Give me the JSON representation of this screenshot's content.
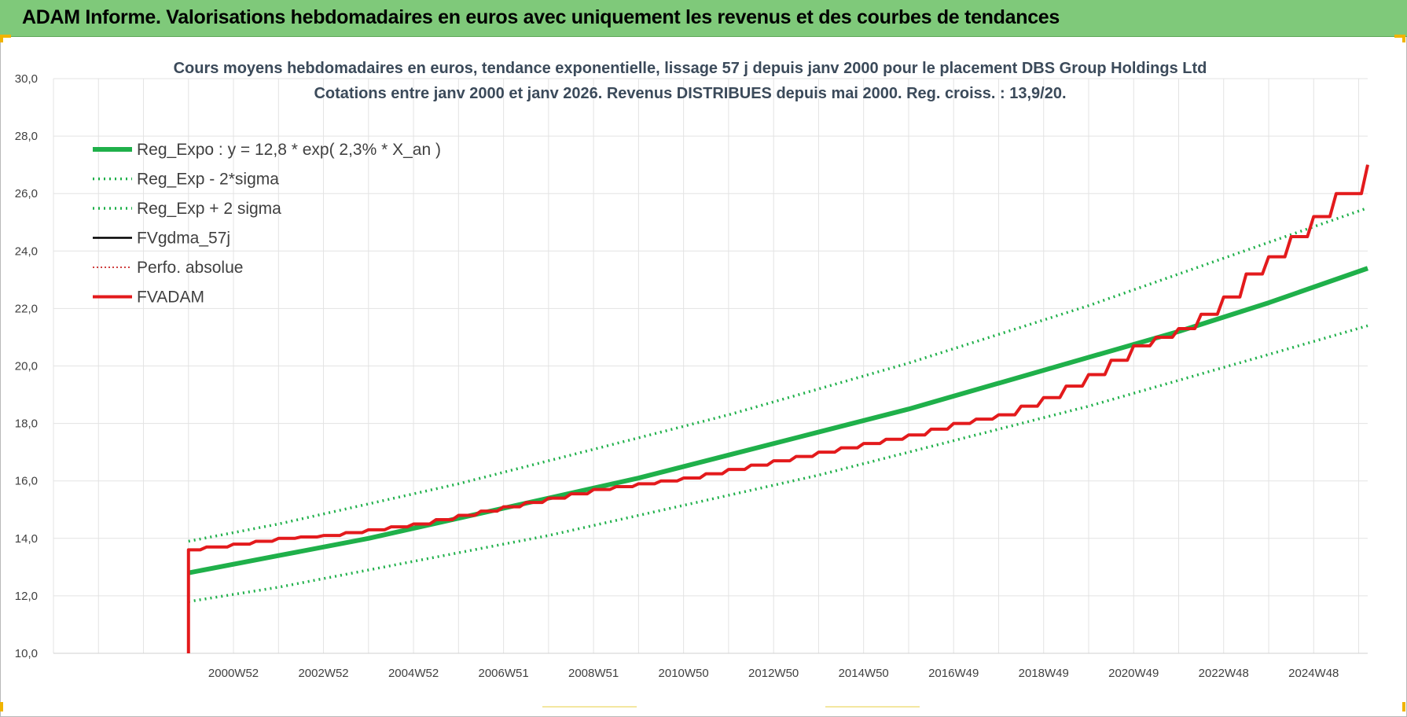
{
  "header": {
    "title": "ADAM Informe. Valorisations hebdomadaires en euros avec uniquement les revenus et des courbes de tendances"
  },
  "colors": {
    "header_bg": "#7fc97a",
    "reg_expo": "#1fb04a",
    "bands": "#1fb04a",
    "fvgdma": "#000000",
    "perfo": "#c00000",
    "fvadam": "#e31a1c",
    "grid": "#e3e3e3"
  },
  "chart_data": {
    "type": "line",
    "title_line1": "Cours moyens hebdomadaires en euros, tendance exponentielle, lissage 57 j depuis janv 2000 pour le placement DBS Group Holdings Ltd",
    "title_line2": "Cotations entre janv 2000 et janv 2026. Revenus DISTRIBUES depuis mai 2000.  Reg. croiss. : 13,9/20.",
    "ylim": [
      10,
      30
    ],
    "yticks": [
      "10,0",
      "12,0",
      "14,0",
      "16,0",
      "18,0",
      "20,0",
      "22,0",
      "24,0",
      "26,0",
      "28,0",
      "30,0"
    ],
    "xlim": [
      1997,
      2026.2
    ],
    "x_ticks": [
      {
        "x": 2001,
        "label": "2000W52"
      },
      {
        "x": 2003,
        "label": "2002W52"
      },
      {
        "x": 2005,
        "label": "2004W52"
      },
      {
        "x": 2007,
        "label": "2006W51"
      },
      {
        "x": 2009,
        "label": "2008W51"
      },
      {
        "x": 2011,
        "label": "2010W50"
      },
      {
        "x": 2013,
        "label": "2012W50"
      },
      {
        "x": 2015,
        "label": "2014W50"
      },
      {
        "x": 2017,
        "label": "2016W49"
      },
      {
        "x": 2019,
        "label": "2018W49"
      },
      {
        "x": 2021,
        "label": "2020W49"
      },
      {
        "x": 2023,
        "label": "2022W48"
      },
      {
        "x": 2025,
        "label": "2024W48"
      }
    ],
    "grid": true,
    "legend_position": "top-left",
    "legend": [
      {
        "label": "Reg_Expo : y = 12,8 * exp( 2,3% *  X_an )",
        "color": "#1fb04a",
        "style": "solid-thick"
      },
      {
        "label": "Reg_Exp - 2*sigma",
        "color": "#1fb04a",
        "style": "dotted"
      },
      {
        "label": "Reg_Exp + 2 sigma",
        "color": "#1fb04a",
        "style": "dotted"
      },
      {
        "label": "FVgdma_57j",
        "color": "#000000",
        "style": "solid"
      },
      {
        "label": "Perfo. absolue",
        "color": "#c00000",
        "style": "dotted-thin"
      },
      {
        "label": "FVADAM",
        "color": "#e31a1c",
        "style": "solid-thick"
      }
    ],
    "series": [
      {
        "name": "Reg_Expo : y = 12,8 * exp( 2,3% *  X_an )",
        "x": [
          2000.0,
          2002,
          2004,
          2006,
          2008,
          2010,
          2012,
          2014,
          2016,
          2018,
          2020,
          2022,
          2024,
          2026.2
        ],
        "y": [
          12.8,
          13.4,
          14.0,
          14.7,
          15.4,
          16.1,
          16.9,
          17.7,
          18.5,
          19.4,
          20.3,
          21.2,
          22.2,
          23.4
        ]
      },
      {
        "name": "Reg_Exp - 2*sigma",
        "x": [
          2000.0,
          2002,
          2004,
          2006,
          2008,
          2010,
          2012,
          2014,
          2016,
          2018,
          2020,
          2022,
          2024,
          2026.2
        ],
        "y": [
          11.8,
          12.3,
          12.9,
          13.5,
          14.1,
          14.8,
          15.5,
          16.2,
          17.0,
          17.8,
          18.6,
          19.5,
          20.4,
          21.4
        ]
      },
      {
        "name": "Reg_Exp + 2 sigma",
        "x": [
          2000.0,
          2002,
          2004,
          2006,
          2008,
          2010,
          2012,
          2014,
          2016,
          2018,
          2020,
          2022,
          2024,
          2026.2
        ],
        "y": [
          13.9,
          14.5,
          15.2,
          15.9,
          16.7,
          17.5,
          18.3,
          19.2,
          20.1,
          21.1,
          22.1,
          23.2,
          24.3,
          25.5
        ]
      },
      {
        "name": "FVgdma_57j",
        "x": [
          2000.0,
          2000.4,
          2001,
          2002,
          2003,
          2004,
          2005,
          2006,
          2007,
          2008,
          2009,
          2010,
          2011,
          2012,
          2013,
          2014,
          2015,
          2016,
          2017,
          2018,
          2019,
          2020,
          2021,
          2021.5,
          2022,
          2022.5,
          2023,
          2023.5,
          2024,
          2024.5,
          2025,
          2025.5,
          2026.2
        ],
        "y": [
          13.6,
          13.7,
          13.8,
          14.0,
          14.1,
          14.3,
          14.5,
          14.8,
          15.1,
          15.4,
          15.7,
          15.9,
          16.1,
          16.4,
          16.7,
          17.0,
          17.3,
          17.6,
          18.0,
          18.3,
          18.9,
          19.7,
          20.7,
          21.0,
          21.3,
          21.8,
          22.4,
          23.2,
          23.8,
          24.5,
          25.2,
          26.0,
          27.0
        ]
      },
      {
        "name": "Perfo. absolue",
        "x": [
          2000.0,
          2000.4,
          2001,
          2002,
          2003,
          2004,
          2005,
          2006,
          2007,
          2008,
          2009,
          2010,
          2011,
          2012,
          2013,
          2014,
          2015,
          2016,
          2017,
          2018,
          2019,
          2020,
          2021,
          2021.5,
          2022,
          2022.5,
          2023,
          2023.5,
          2024,
          2024.5,
          2025,
          2025.5,
          2026.2
        ],
        "y": [
          13.6,
          13.7,
          13.8,
          14.0,
          14.1,
          14.3,
          14.5,
          14.8,
          15.1,
          15.4,
          15.7,
          15.9,
          16.1,
          16.4,
          16.7,
          17.0,
          17.3,
          17.6,
          18.0,
          18.3,
          18.9,
          19.7,
          20.7,
          21.0,
          21.3,
          21.8,
          22.4,
          23.2,
          23.8,
          24.5,
          25.2,
          26.0,
          27.0
        ]
      },
      {
        "name": "FVADAM",
        "x": [
          2000.0,
          2000.0,
          2000.4,
          2001,
          2002,
          2003,
          2004,
          2005,
          2006,
          2007,
          2008,
          2009,
          2010,
          2011,
          2012,
          2013,
          2014,
          2015,
          2016,
          2017,
          2018,
          2019,
          2020,
          2021,
          2021.5,
          2022,
          2022.5,
          2023,
          2023.5,
          2024,
          2024.5,
          2025,
          2025.5,
          2026.2
        ],
        "y": [
          10.0,
          13.6,
          13.7,
          13.8,
          14.0,
          14.1,
          14.3,
          14.5,
          14.8,
          15.1,
          15.4,
          15.7,
          15.9,
          16.1,
          16.4,
          16.7,
          17.0,
          17.3,
          17.6,
          18.0,
          18.3,
          18.9,
          19.7,
          20.7,
          21.0,
          21.3,
          21.8,
          22.4,
          23.2,
          23.8,
          24.5,
          25.2,
          26.0,
          27.0
        ]
      }
    ]
  }
}
